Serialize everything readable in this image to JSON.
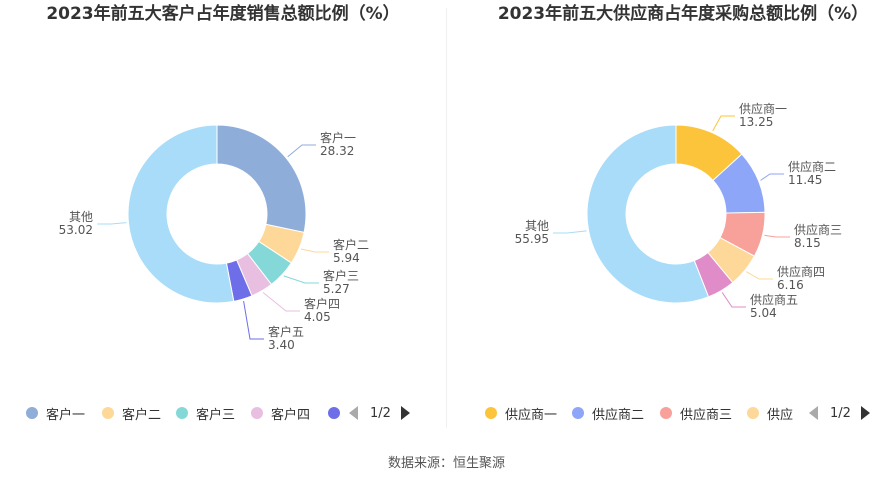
{
  "source": "数据来源：恒生聚源",
  "charts": [
    {
      "title": "2023年前五大客户占年度销售总额比例（%）",
      "pager": "1/2",
      "chart_data": {
        "type": "pie",
        "categories": [
          "客户一",
          "客户二",
          "客户三",
          "客户四",
          "客户五",
          "其他"
        ],
        "values": [
          28.32,
          5.94,
          5.27,
          4.05,
          3.4,
          53.02
        ],
        "value_labels": [
          "28.32",
          "5.94",
          "5.27",
          "4.05",
          "3.40",
          "53.02"
        ],
        "colors": [
          "#8fadd9",
          "#fdd898",
          "#85d8d8",
          "#e8bfe0",
          "#6e6ee8",
          "#a8dcf8"
        ],
        "legend_items": [
          "客户一",
          "客户二",
          "客户三",
          "客户四"
        ],
        "legend_placement": "bottom"
      }
    },
    {
      "title": "2023年前五大供应商占年度采购总额比例（%）",
      "pager": "1/2",
      "chart_data": {
        "type": "pie",
        "categories": [
          "供应商一",
          "供应商二",
          "供应商三",
          "供应商四",
          "供应商五",
          "其他"
        ],
        "values": [
          13.25,
          11.45,
          8.15,
          6.16,
          5.04,
          55.95
        ],
        "value_labels": [
          "13.25",
          "11.45",
          "8.15",
          "6.16",
          "5.04",
          "55.95"
        ],
        "colors": [
          "#fcc43a",
          "#8da6f8",
          "#f8a09a",
          "#fdd898",
          "#e08cc8",
          "#a8dcf8"
        ],
        "legend_items": [
          "供应商一",
          "供应商二",
          "供应商三",
          "供应"
        ],
        "legend_placement": "bottom"
      }
    }
  ]
}
